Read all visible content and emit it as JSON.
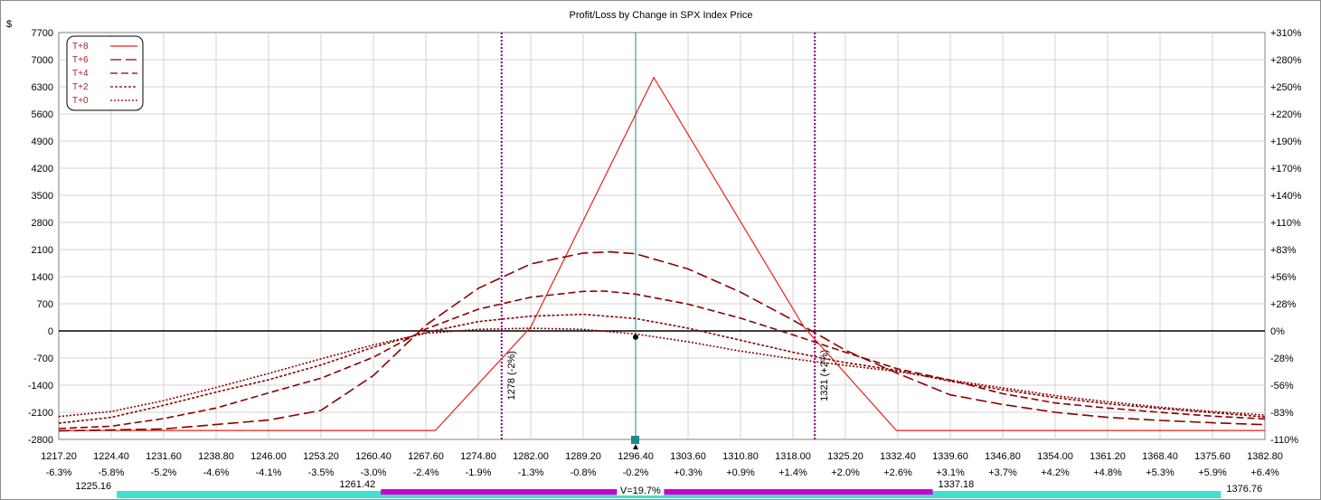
{
  "chart_data": {
    "type": "line",
    "title": "Profit/Loss by Change in SPX Index Price",
    "ylabel_left": "$",
    "ylim": [
      -2800,
      7700
    ],
    "xlim": [
      1217.2,
      1382.8
    ],
    "left_ticks": [
      "7700",
      "7000",
      "6300",
      "5600",
      "4900",
      "4200",
      "3500",
      "2800",
      "2100",
      "1400",
      "700",
      "0",
      "-700",
      "-1400",
      "-2100",
      "-2800"
    ],
    "right_ticks": [
      "+310%",
      "+280%",
      "+250%",
      "+220%",
      "+190%",
      "+170%",
      "+140%",
      "+110%",
      "+83%",
      "+56%",
      "+28%",
      "0%",
      "-28%",
      "-56%",
      "-83%",
      "-110%"
    ],
    "x_ticks": [
      "1217.20",
      "1224.40",
      "1231.60",
      "1238.80",
      "1246.00",
      "1253.20",
      "1260.40",
      "1267.60",
      "1274.80",
      "1282.00",
      "1289.20",
      "1296.40",
      "1303.60",
      "1310.80",
      "1318.00",
      "1325.20",
      "1332.40",
      "1339.60",
      "1346.80",
      "1354.00",
      "1361.20",
      "1368.40",
      "1375.60",
      "1382.80"
    ],
    "x_pct_ticks": [
      "-6.3%",
      "-5.8%",
      "-5.2%",
      "-4.6%",
      "-4.1%",
      "-3.5%",
      "-3.0%",
      "-2.4%",
      "-1.9%",
      "-1.3%",
      "-0.8%",
      "-0.2%",
      "+0.3%",
      "+0.9%",
      "+1.4%",
      "+2.0%",
      "+2.6%",
      "+3.1%",
      "+3.7%",
      "+4.2%",
      "+4.8%",
      "+5.3%",
      "+5.9%",
      "+6.4%"
    ],
    "legend_position": "top-left",
    "legend": [
      {
        "label": "T+8",
        "sample": "*———",
        "color": "#e8201b",
        "dash": ""
      },
      {
        "label": "T+6",
        "sample": "—— -",
        "color": "#8b0000",
        "dash": "12,5"
      },
      {
        "label": "T+4",
        "sample": "— -",
        "color": "#8b0000",
        "dash": "8,4"
      },
      {
        "label": "T+2",
        "sample": "------",
        "color": "#8b0000",
        "dash": "3,2"
      },
      {
        "label": "T+0",
        "sample": "......",
        "color": "#8b0000",
        "dash": "2,2"
      }
    ],
    "series": [
      {
        "name": "T+8",
        "x": [
          1217.2,
          1268.9,
          1282.0,
          1298.9,
          1319.5,
          1332.2,
          1382.8
        ],
        "y": [
          -2570,
          -2570,
          100,
          6540,
          100,
          -2570,
          -2570
        ]
      },
      {
        "name": "T+6",
        "x": [
          1217.2,
          1231.6,
          1246.0,
          1253.2,
          1260.4,
          1267.6,
          1274.8,
          1282.0,
          1289.2,
          1293.0,
          1296.4,
          1303.6,
          1310.8,
          1318.0,
          1325.2,
          1332.4,
          1339.6,
          1346.8,
          1354.0,
          1361.2,
          1368.4,
          1375.6,
          1382.8
        ],
        "y": [
          -2580,
          -2530,
          -2300,
          -2050,
          -1150,
          150,
          1100,
          1730,
          2010,
          2040,
          1990,
          1600,
          1000,
          280,
          -500,
          -1100,
          -1650,
          -1900,
          -2100,
          -2230,
          -2310,
          -2370,
          -2420
        ]
      },
      {
        "name": "T+4",
        "x": [
          1217.2,
          1224.4,
          1231.6,
          1238.8,
          1246.0,
          1253.2,
          1260.4,
          1267.6,
          1274.8,
          1282.0,
          1289.2,
          1292.0,
          1296.4,
          1303.6,
          1310.8,
          1318.0,
          1325.2,
          1332.4,
          1339.6,
          1346.8,
          1354.0,
          1361.2,
          1368.4,
          1375.6,
          1382.8
        ],
        "y": [
          -2520,
          -2460,
          -2260,
          -1990,
          -1600,
          -1220,
          -680,
          50,
          560,
          870,
          1020,
          1030,
          950,
          690,
          330,
          -100,
          -550,
          -980,
          -1270,
          -1620,
          -1860,
          -1990,
          -2100,
          -2200,
          -2270
        ]
      },
      {
        "name": "T+2",
        "x": [
          1217.2,
          1224.4,
          1231.6,
          1238.8,
          1246.0,
          1253.2,
          1260.4,
          1267.6,
          1274.8,
          1282.0,
          1289.2,
          1296.4,
          1303.6,
          1310.8,
          1318.0,
          1325.2,
          1332.4,
          1339.6,
          1346.8,
          1354.0,
          1361.2,
          1368.4,
          1375.6,
          1382.8
        ],
        "y": [
          -2380,
          -2230,
          -1920,
          -1580,
          -1260,
          -880,
          -420,
          -40,
          240,
          380,
          430,
          320,
          70,
          -240,
          -550,
          -820,
          -1020,
          -1300,
          -1520,
          -1720,
          -1880,
          -2000,
          -2110,
          -2220
        ]
      },
      {
        "name": "T+0",
        "x": [
          1217.2,
          1224.4,
          1231.6,
          1238.8,
          1246.0,
          1253.2,
          1260.4,
          1267.6,
          1274.8,
          1282.0,
          1289.2,
          1296.4,
          1303.6,
          1310.8,
          1318.0,
          1325.2,
          1332.4,
          1339.6,
          1346.8,
          1354.0,
          1361.2,
          1368.4,
          1375.6,
          1382.8
        ],
        "y": [
          -2210,
          -2080,
          -1800,
          -1460,
          -1100,
          -720,
          -360,
          -60,
          40,
          70,
          40,
          -80,
          -280,
          -520,
          -720,
          -890,
          -1050,
          -1270,
          -1470,
          -1670,
          -1830,
          -1970,
          -2080,
          -2170
        ]
      }
    ],
    "markers": [
      {
        "label": "1278 (-2%)",
        "x": 1278,
        "color": "#800080"
      },
      {
        "label": "1321 (+2%)",
        "x": 1321,
        "color": "#800080"
      }
    ],
    "current_price_line": {
      "x": 1296.4,
      "color": "#1a8a8a"
    },
    "current_point": {
      "x": 1296.4,
      "y": -160
    },
    "range_bar": {
      "outer": [
        1225.16,
        1376.76
      ],
      "inner": [
        1261.42,
        1337.18
      ],
      "labels": [
        "1225.16",
        "1261.42",
        "1337.18",
        "1376.76"
      ],
      "volatility_label": "V=19.7%",
      "outer_color": "#40e0d0",
      "inner_color": "#cc00cc"
    }
  }
}
